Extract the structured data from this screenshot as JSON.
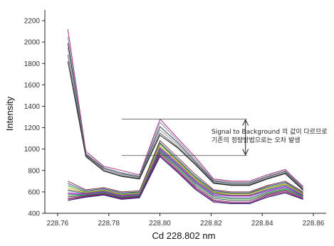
{
  "chart_data": {
    "type": "line",
    "xlabel": "Cd 228.802 nm",
    "ylabel": "Intensity",
    "xlim": [
      228.755,
      228.865
    ],
    "ylim": [
      400,
      2300
    ],
    "x_ticks": [
      "228.76",
      "228.78",
      "228.80",
      "228.82",
      "228.84",
      "228.86"
    ],
    "y_ticks": [
      "400",
      "600",
      "800",
      "1000",
      "1200",
      "1400",
      "1600",
      "1800",
      "2000",
      "2200"
    ],
    "grid": false,
    "annotation": {
      "lines": [
        "Signal to Background 의 값이 다르므로",
        "기존의 정량방법으로는 오차 발생"
      ],
      "upper_level": 1280,
      "lower_level": 940,
      "x_range": [
        228.785,
        228.834
      ]
    },
    "x": [
      228.764,
      228.771,
      228.778,
      228.785,
      228.792,
      228.8,
      228.807,
      228.814,
      228.821,
      228.828,
      228.835,
      228.842,
      228.849,
      228.856
    ],
    "series": [
      {
        "color": "#b0307a",
        "values": [
          2120,
          980,
          840,
          800,
          760,
          1280,
          1100,
          920,
          720,
          700,
          700,
          760,
          810,
          650
        ]
      },
      {
        "color": "#7a8ab0",
        "values": [
          2050,
          960,
          830,
          780,
          750,
          1250,
          1080,
          900,
          710,
          690,
          690,
          750,
          800,
          640
        ]
      },
      {
        "color": "#333333",
        "values": [
          1990,
          950,
          820,
          770,
          740,
          1210,
          1060,
          880,
          700,
          680,
          680,
          740,
          790,
          630
        ]
      },
      {
        "color": "#8899aa",
        "values": [
          1950,
          940,
          810,
          760,
          730,
          1180,
          1040,
          870,
          690,
          670,
          670,
          730,
          780,
          625
        ]
      },
      {
        "color": "#555555",
        "values": [
          1880,
          935,
          800,
          750,
          725,
          1150,
          1020,
          860,
          685,
          665,
          665,
          725,
          775,
          620
        ]
      },
      {
        "color": "#222222",
        "values": [
          1820,
          930,
          795,
          745,
          720,
          1130,
          1010,
          850,
          680,
          660,
          660,
          720,
          770,
          615
        ]
      },
      {
        "color": "#7a3a3a",
        "values": [
          700,
          620,
          640,
          600,
          610,
          1080,
          920,
          760,
          620,
          600,
          600,
          660,
          700,
          600
        ]
      },
      {
        "color": "#3a3a9a",
        "values": [
          680,
          610,
          630,
          590,
          600,
          1060,
          900,
          740,
          610,
          590,
          590,
          650,
          690,
          590
        ]
      },
      {
        "color": "#3a9a3a",
        "values": [
          660,
          600,
          620,
          580,
          595,
          1050,
          890,
          730,
          600,
          585,
          585,
          640,
          680,
          585
        ]
      },
      {
        "color": "#c0c020",
        "values": [
          640,
          595,
          615,
          575,
          590,
          1040,
          880,
          720,
          595,
          580,
          580,
          635,
          675,
          580
        ]
      },
      {
        "color": "#c05050",
        "values": [
          620,
          590,
          610,
          570,
          585,
          1020,
          870,
          710,
          590,
          570,
          570,
          625,
          665,
          575
        ]
      },
      {
        "color": "#20a0a0",
        "values": [
          610,
          585,
          605,
          565,
          580,
          1010,
          860,
          700,
          585,
          565,
          565,
          620,
          660,
          570
        ]
      },
      {
        "color": "#c000c0",
        "values": [
          590,
          580,
          600,
          560,
          575,
          1000,
          850,
          690,
          575,
          560,
          560,
          610,
          650,
          565
        ]
      },
      {
        "color": "#6060c0",
        "values": [
          580,
          575,
          595,
          555,
          570,
          990,
          840,
          680,
          565,
          545,
          545,
          600,
          640,
          560
        ]
      },
      {
        "color": "#30a030",
        "values": [
          570,
          570,
          590,
          550,
          565,
          980,
          830,
          670,
          555,
          535,
          535,
          590,
          630,
          555
        ]
      },
      {
        "color": "#444444",
        "values": [
          555,
          565,
          585,
          545,
          560,
          970,
          815,
          655,
          540,
          520,
          520,
          580,
          620,
          550
        ]
      },
      {
        "color": "#7a2a7a",
        "values": [
          540,
          560,
          580,
          540,
          555,
          955,
          800,
          640,
          525,
          505,
          505,
          570,
          610,
          540
        ]
      },
      {
        "color": "#a02060",
        "values": [
          530,
          555,
          575,
          535,
          550,
          940,
          790,
          630,
          515,
          495,
          495,
          560,
          600,
          535
        ]
      },
      {
        "color": "#20207a",
        "values": [
          520,
          550,
          570,
          530,
          545,
          930,
          780,
          620,
          505,
          490,
          490,
          550,
          590,
          530
        ]
      }
    ]
  }
}
